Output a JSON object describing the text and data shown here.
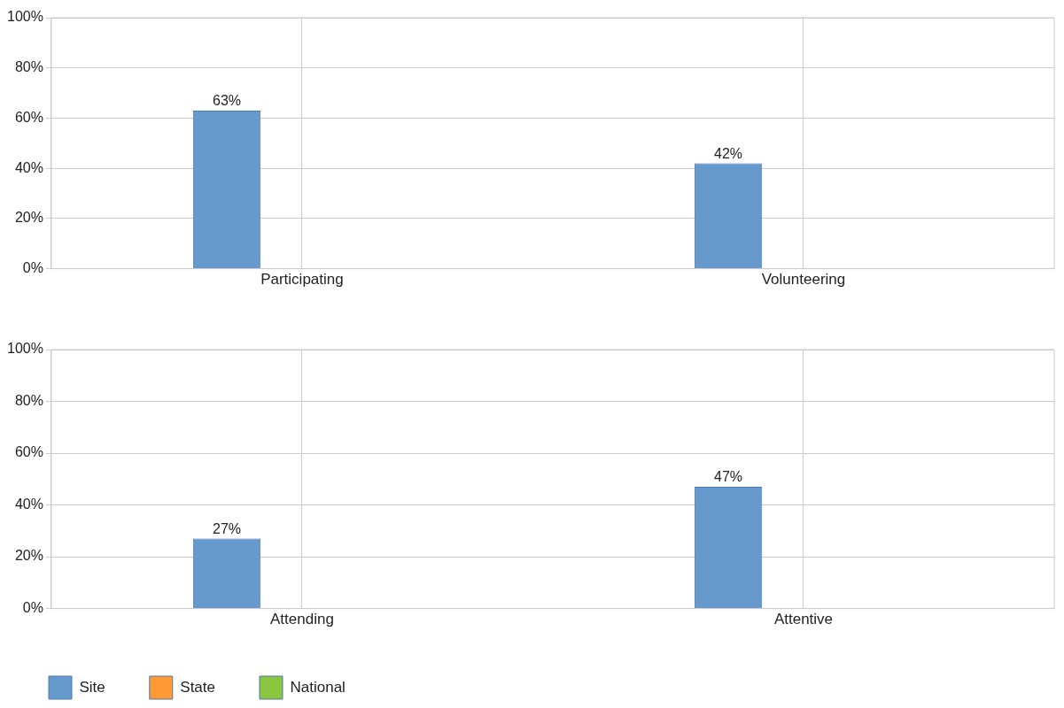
{
  "chart_data": [
    {
      "type": "bar",
      "categories": [
        "Participating",
        "Volunteering"
      ],
      "series": [
        {
          "color": "#6699cc",
          "values": [
            63,
            42
          ],
          "value_labels": [
            "63%",
            "42%"
          ]
        },
        {
          "color": "#ff9933",
          "values": [
            null,
            null
          ]
        },
        {
          "color": "#8cc63f",
          "values": [
            null,
            null
          ]
        }
      ],
      "ylim": [
        0,
        100
      ],
      "yticks": [
        {
          "value": 0,
          "label": "0%"
        },
        {
          "value": 20,
          "label": "20%"
        },
        {
          "value": 40,
          "label": "40%"
        },
        {
          "value": 60,
          "label": "60%"
        },
        {
          "value": 80,
          "label": "80%"
        },
        {
          "value": 100,
          "label": "100%"
        }
      ],
      "grid": true,
      "legend": false
    },
    {
      "type": "bar",
      "categories": [
        "Attending",
        "Attentive"
      ],
      "series": [
        {
          "name": "Site",
          "color": "#6699cc",
          "values": [
            27,
            47
          ],
          "value_labels": [
            "27%",
            "47%"
          ]
        },
        {
          "name": "State",
          "color": "#ff9933",
          "values": [
            null,
            null
          ]
        },
        {
          "name": "National",
          "color": "#8cc63f",
          "values": [
            null,
            null
          ]
        }
      ],
      "ylim": [
        0,
        100
      ],
      "yticks": [
        {
          "value": 0,
          "label": "0%"
        },
        {
          "value": 20,
          "label": "20%"
        },
        {
          "value": 40,
          "label": "40%"
        },
        {
          "value": 60,
          "label": "60%"
        },
        {
          "value": 80,
          "label": "80%"
        },
        {
          "value": 100,
          "label": "100%"
        }
      ],
      "grid": true,
      "legend": "bottom"
    }
  ]
}
